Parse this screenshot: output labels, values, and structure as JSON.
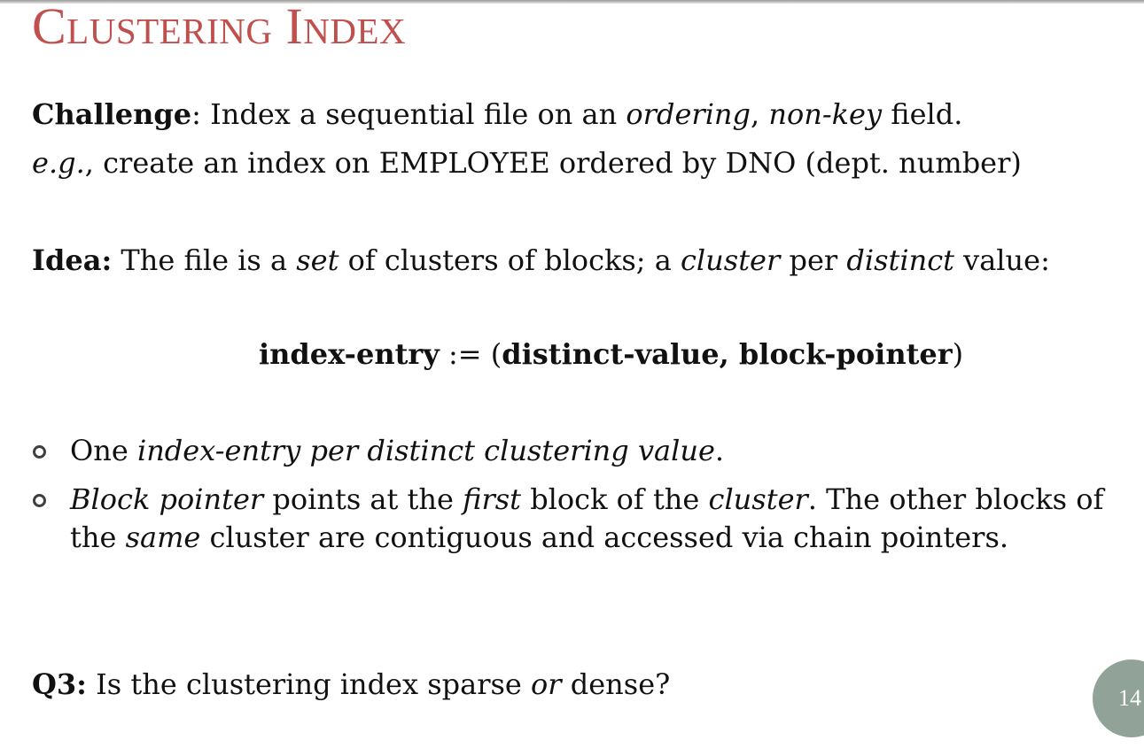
{
  "slide": {
    "title": "Clustering Index",
    "page_number": "14"
  },
  "line1": {
    "a": "Challenge",
    "b": ": Index a sequential file on an ",
    "c": "ordering",
    "d": ", ",
    "e": "non-key",
    "f": " field."
  },
  "line2": {
    "a": "e.g.",
    "b": ", create an index on EMPLOYEE  ordered by DNO (dept. number)"
  },
  "line3": {
    "a": "Idea:",
    "b": " The file is a ",
    "c": "set",
    "d": " of clusters of blocks; a ",
    "e": "cluster",
    "f": " per ",
    "g": "distinct",
    "h": " value:"
  },
  "formula": {
    "a": "index-entry",
    "b": " := (",
    "c": "distinct-value, block-pointer",
    "d": ")"
  },
  "bullets": [
    {
      "a": "One ",
      "b": "index-entry per distinct clustering value",
      "c": "."
    },
    {
      "a": "Block pointer",
      "b": " points at the ",
      "c": "first",
      "d": " block of the ",
      "e": "cluster",
      "f": ". The other blocks of the ",
      "g": "same",
      "h": " cluster are contiguous and accessed via chain pointers."
    }
  ],
  "question": {
    "a": "Q3:",
    "b": " Is the clustering index sparse ",
    "c": "or",
    "d": " dense?"
  }
}
